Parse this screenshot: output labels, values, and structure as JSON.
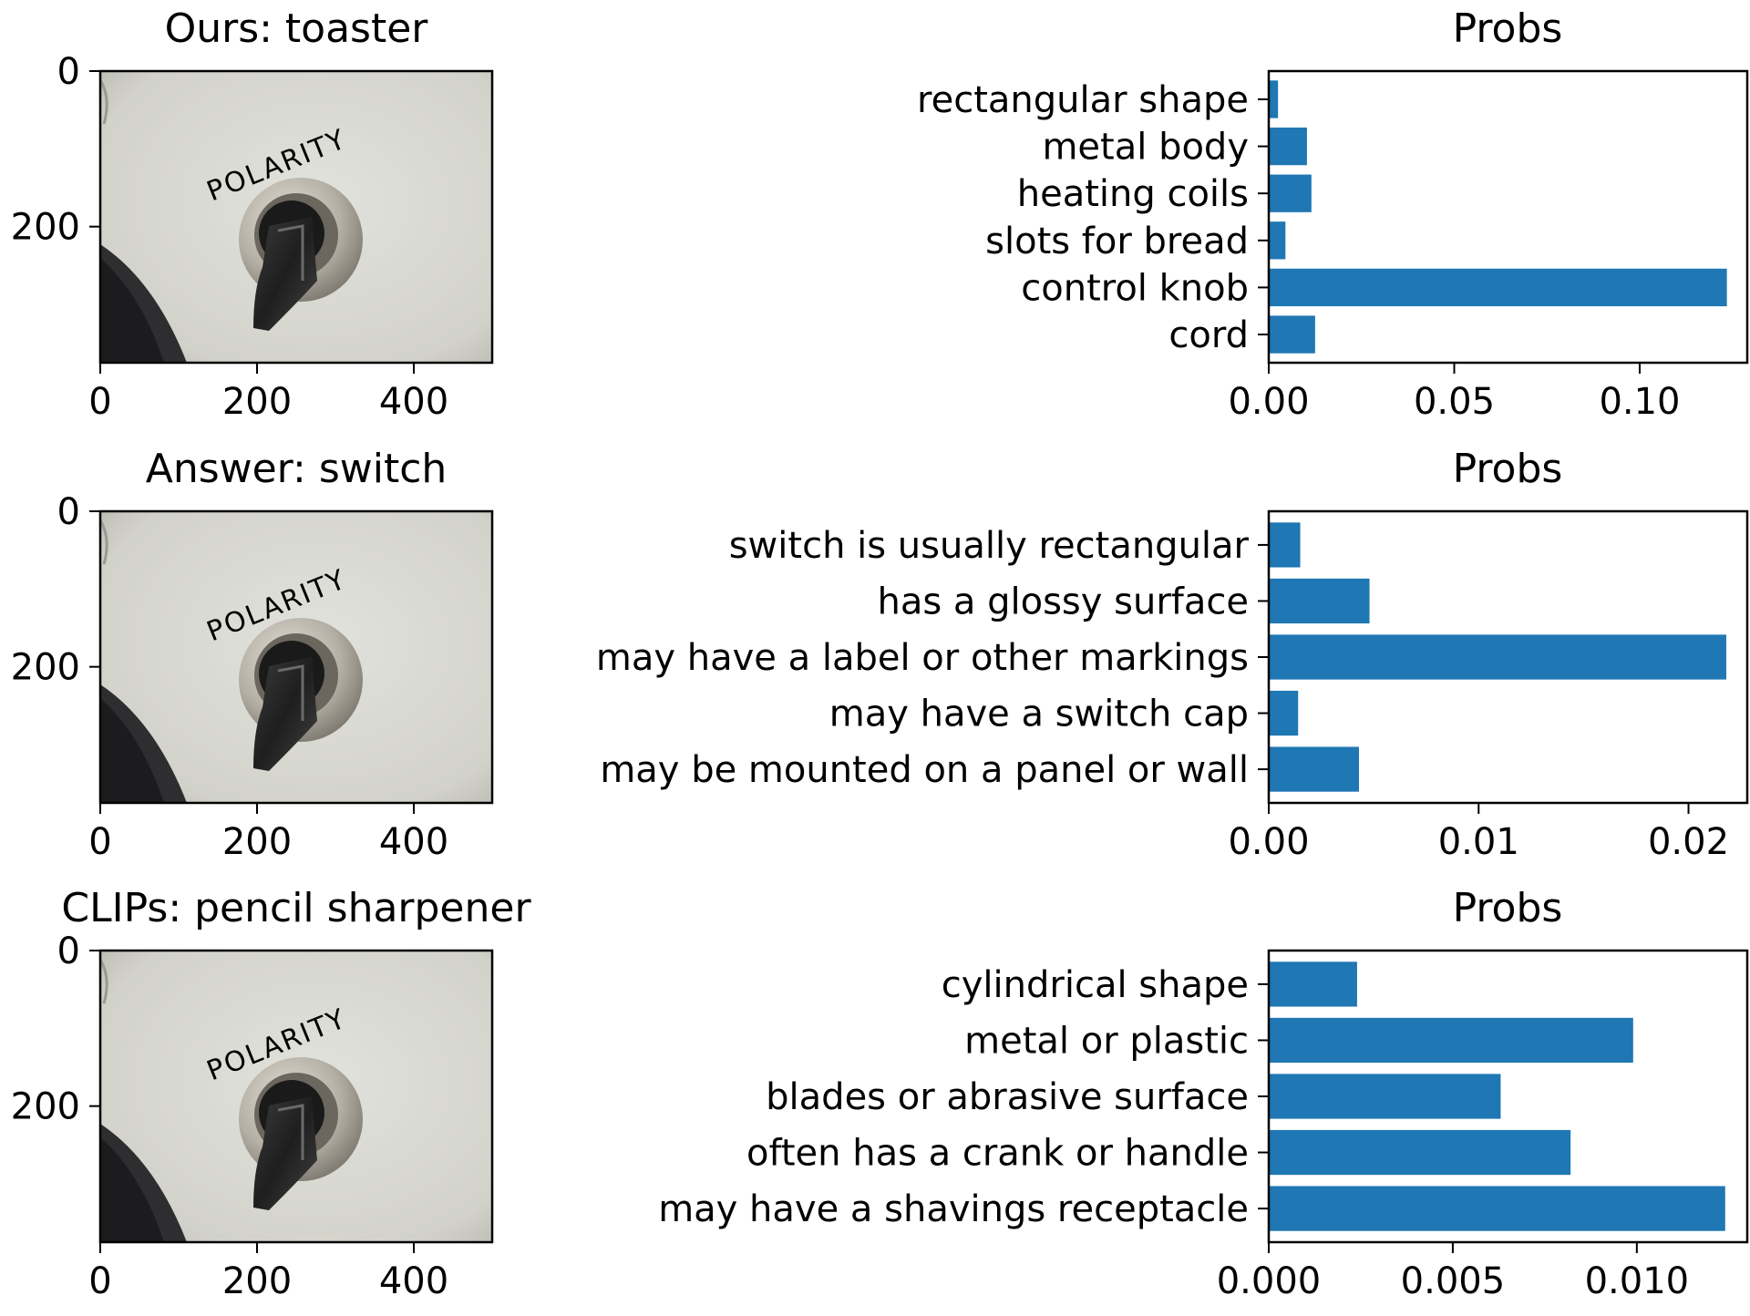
{
  "image_axes": {
    "x_ticks": [
      "0",
      "200",
      "400"
    ],
    "y_ticks": [
      "0",
      "200"
    ],
    "x_tick_values": [
      0,
      200,
      400
    ],
    "y_tick_values": [
      0,
      200
    ],
    "xlim": [
      0,
      500
    ],
    "ylim": [
      375,
      0
    ]
  },
  "photo": {
    "label_text": "POLARITY",
    "colors": {
      "panel": "#d9d9d2",
      "panel_shadow": "#a8a8a2",
      "dark": "#2a2a2a",
      "ring": "#b9b4aa"
    }
  },
  "colors": {
    "bar": "#1f77b4"
  },
  "chart_data": [
    {
      "type": "image",
      "title": "Ours: toaster",
      "x_ticks": [
        0,
        200,
        400
      ],
      "y_ticks": [
        0,
        200
      ],
      "xlim": [
        0,
        500
      ],
      "ylim": [
        375,
        0
      ]
    },
    {
      "type": "bar",
      "orientation": "horizontal",
      "title": "Probs",
      "categories": [
        "rectangular shape",
        "metal body",
        "heating coils",
        "slots for bread",
        "control knob",
        "cord"
      ],
      "values": [
        0.0025,
        0.0103,
        0.0115,
        0.0045,
        0.1235,
        0.0125
      ],
      "xlim": [
        0,
        0.129
      ],
      "x_ticks": [
        0.0,
        0.05,
        0.1
      ],
      "x_tick_labels": [
        "0.00",
        "0.05",
        "0.10"
      ]
    },
    {
      "type": "image",
      "title": "Answer: switch",
      "x_ticks": [
        0,
        200,
        400
      ],
      "y_ticks": [
        0,
        200
      ],
      "xlim": [
        0,
        500
      ],
      "ylim": [
        375,
        0
      ]
    },
    {
      "type": "bar",
      "orientation": "horizontal",
      "title": "Probs",
      "categories": [
        "switch is usually rectangular",
        "has a glossy surface",
        "may have a label or other markings",
        "may have a switch cap",
        "may be mounted on a panel or wall"
      ],
      "values": [
        0.0015,
        0.0048,
        0.0218,
        0.0014,
        0.0043
      ],
      "xlim": [
        0,
        0.0228
      ],
      "x_ticks": [
        0.0,
        0.01,
        0.02
      ],
      "x_tick_labels": [
        "0.00",
        "0.01",
        "0.02"
      ]
    },
    {
      "type": "image",
      "title": "CLIPs: pencil sharpener",
      "x_ticks": [
        0,
        200,
        400
      ],
      "y_ticks": [
        0,
        200
      ],
      "xlim": [
        0,
        500
      ],
      "ylim": [
        375,
        0
      ]
    },
    {
      "type": "bar",
      "orientation": "horizontal",
      "title": "Probs",
      "categories": [
        "cylindrical shape",
        "metal or plastic",
        "blades or abrasive surface",
        "often has a crank or handle",
        "may have a shavings receptacle"
      ],
      "values": [
        0.0024,
        0.0099,
        0.0063,
        0.0082,
        0.0124
      ],
      "xlim": [
        0,
        0.013
      ],
      "x_ticks": [
        0.0,
        0.005,
        0.01
      ],
      "x_tick_labels": [
        "0.000",
        "0.005",
        "0.010"
      ]
    }
  ]
}
